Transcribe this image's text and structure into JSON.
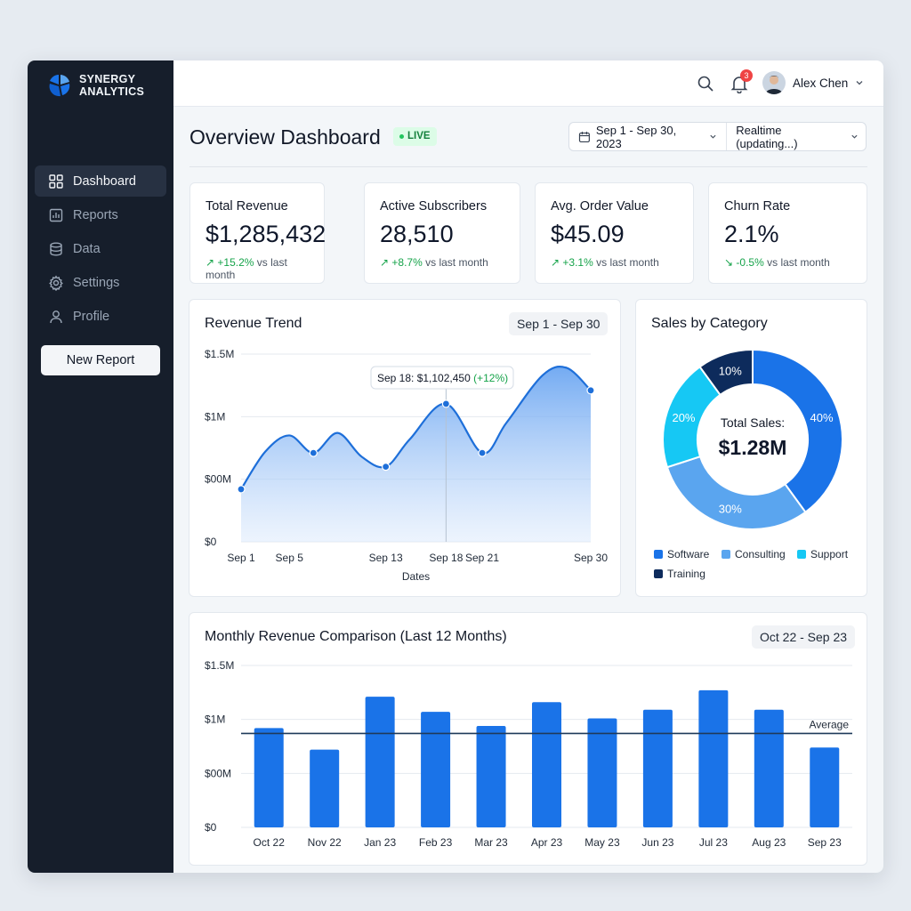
{
  "app": {
    "brand_line1": "SYNERGY",
    "brand_line2": "ANALYTICS"
  },
  "sidebar": {
    "items": [
      {
        "label": "Dashboard",
        "icon": "grid-icon",
        "active": true
      },
      {
        "label": "Reports",
        "icon": "bar-chart-icon",
        "active": false
      },
      {
        "label": "Data",
        "icon": "database-icon",
        "active": false
      },
      {
        "label": "Settings",
        "icon": "gear-icon",
        "active": false
      },
      {
        "label": "Profile",
        "icon": "user-icon",
        "active": false
      }
    ],
    "new_report_label": "New Report"
  },
  "topbar": {
    "notification_count": "3",
    "user_name": "Alex Chen"
  },
  "header": {
    "title": "Overview Dashboard",
    "live_label": "LIVE",
    "date_range": "Sep 1 - Sep 30, 2023",
    "refresh_mode": "Realtime (updating...)"
  },
  "kpis": [
    {
      "label": "Total Revenue",
      "value": "$1,285,432",
      "delta": "+15.2%",
      "suffix": "vs last month",
      "direction": "up"
    },
    {
      "label": "Active Subscribers",
      "value": "28,510",
      "delta": "+8.7%",
      "suffix": "vs last month",
      "direction": "up"
    },
    {
      "label": "Avg. Order Value",
      "value": "$45.09",
      "delta": "+3.1%",
      "suffix": "vs last month",
      "direction": "up"
    },
    {
      "label": "Churn Rate",
      "value": "2.1%",
      "delta": "-0.5%",
      "suffix": "vs last month",
      "direction": "down"
    }
  ],
  "colors": {
    "accent": "#1a73e8",
    "positive": "#16a34a",
    "software": "#1a73e8",
    "consulting": "#5aa5ef",
    "support": "#16c8f4",
    "training": "#0d2b5c"
  },
  "chart_data": [
    {
      "type": "area",
      "title": "Revenue Trend",
      "range_label": "Sep 1 - Sep 30",
      "xlabel": "Dates",
      "ylabel": "",
      "y_ticks": [
        "$0",
        "$00M",
        "$1M",
        "$1.5M"
      ],
      "ylim": [
        0,
        1500000
      ],
      "x_ticks": [
        "Sep 1",
        "Sep 5",
        "Sep 13",
        "Sep 18",
        "Sep 21",
        "Sep 30"
      ],
      "x": [
        1,
        3,
        5,
        7,
        9,
        11,
        13,
        15,
        18,
        21,
        23,
        26,
        28,
        30
      ],
      "values": [
        420000,
        720000,
        850000,
        710000,
        870000,
        680000,
        600000,
        820000,
        1102450,
        710000,
        950000,
        1330000,
        1390000,
        1210000
      ],
      "markers": [
        1,
        7,
        13,
        18,
        21,
        30
      ],
      "tooltip": {
        "label": "Sep 18: $1,102,450",
        "change": "(+12%)",
        "x": 18
      },
      "grid": true
    },
    {
      "type": "pie",
      "title": "Sales by Category",
      "center_label": "Total Sales:",
      "center_value": "$1.28M",
      "slices": [
        {
          "name": "Software",
          "value": 40,
          "label": "40%"
        },
        {
          "name": "Consulting",
          "value": 30,
          "label": "30%"
        },
        {
          "name": "Support",
          "value": 20,
          "label": "20%"
        },
        {
          "name": "Training",
          "value": 10,
          "label": "10%"
        }
      ],
      "legend": "bottom"
    },
    {
      "type": "bar",
      "title": "Monthly Revenue Comparison (Last 12 Months)",
      "range_label": "Oct 22 - Sep 23",
      "categories": [
        "Oct 22",
        "Nov 22",
        "Jan 23",
        "Feb 23",
        "Mar 23",
        "Apr 23",
        "May 23",
        "Jun 23",
        "Jul 23",
        "Aug 23",
        "Sep 23"
      ],
      "values": [
        920000,
        720000,
        1210000,
        1070000,
        940000,
        1160000,
        1010000,
        1090000,
        1270000,
        1090000,
        740000
      ],
      "y_ticks": [
        "$0",
        "$00M",
        "$1M",
        "$1.5M"
      ],
      "ylim": [
        0,
        1500000
      ],
      "average": 870000,
      "average_label": "Average",
      "grid": true
    }
  ]
}
